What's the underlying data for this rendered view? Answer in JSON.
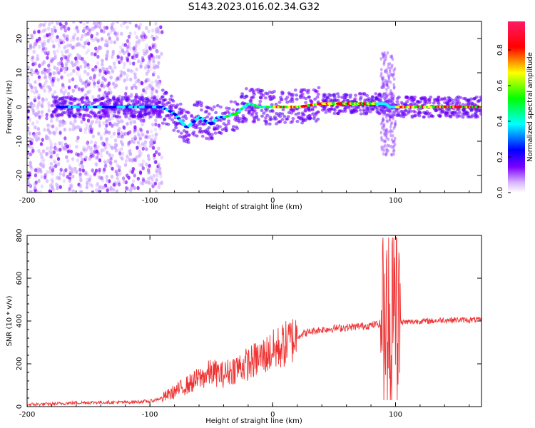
{
  "title": "S143.2023.016.02.34.G32",
  "chart_data": [
    {
      "type": "heatmap",
      "xlabel": "Height of straight line (km)",
      "ylabel": "Frequency (Hz)",
      "xlim": [
        -200,
        170
      ],
      "ylim": [
        -25,
        25
      ],
      "xticks": [
        -200,
        -100,
        0,
        100
      ],
      "yticks": [
        -20,
        -10,
        0,
        10,
        20
      ],
      "colorbar": {
        "label": "Normalized spectral amplitude",
        "range": [
          0,
          1
        ],
        "ticks": [
          "0.0",
          "0.2",
          "0.4",
          "0.6",
          "0.8"
        ],
        "colors": [
          "#ffffff",
          "#7b00ff",
          "#0000ff",
          "#00ffff",
          "#00ff00",
          "#ffff00",
          "#ff0000",
          "#ff1a66"
        ]
      },
      "ridge": {
        "x": [
          -175,
          -150,
          -125,
          -100,
          -90,
          -80,
          -70,
          -60,
          -50,
          -45,
          -40,
          -30,
          -20,
          -10,
          0,
          20,
          40,
          60,
          80,
          88,
          92,
          95,
          100,
          120,
          150,
          170
        ],
        "freq": [
          0,
          0,
          0,
          0,
          0,
          -2,
          -6,
          -3,
          -5,
          -3,
          -3,
          -2,
          1,
          0,
          0,
          0,
          1,
          1,
          1,
          1,
          1,
          0,
          0,
          0,
          0,
          0
        ]
      }
    },
    {
      "type": "line",
      "xlabel": "Height of straight line (km)",
      "ylabel": "SNR (10 * v/v)",
      "xlim": [
        -200,
        170
      ],
      "ylim": [
        0,
        800
      ],
      "xticks": [
        -200,
        -100,
        0,
        100
      ],
      "yticks": [
        0,
        200,
        400,
        600,
        800
      ],
      "series": [
        {
          "color": "#ee3333",
          "x": [
            -200,
            -180,
            -160,
            -140,
            -120,
            -100,
            -90,
            -80,
            -70,
            -60,
            -50,
            -40,
            -30,
            -20,
            -10,
            0,
            10,
            20,
            30,
            40,
            50,
            60,
            70,
            80,
            90,
            95,
            98,
            100,
            102,
            105,
            110,
            120,
            130,
            140,
            150,
            160,
            170
          ],
          "values": [
            10,
            12,
            18,
            20,
            20,
            25,
            40,
            70,
            100,
            130,
            160,
            150,
            180,
            200,
            230,
            260,
            290,
            330,
            350,
            360,
            365,
            370,
            375,
            380,
            390,
            380,
            450,
            390,
            420,
            395,
            395,
            400,
            400,
            405,
            405,
            405,
            405
          ]
        }
      ]
    }
  ]
}
